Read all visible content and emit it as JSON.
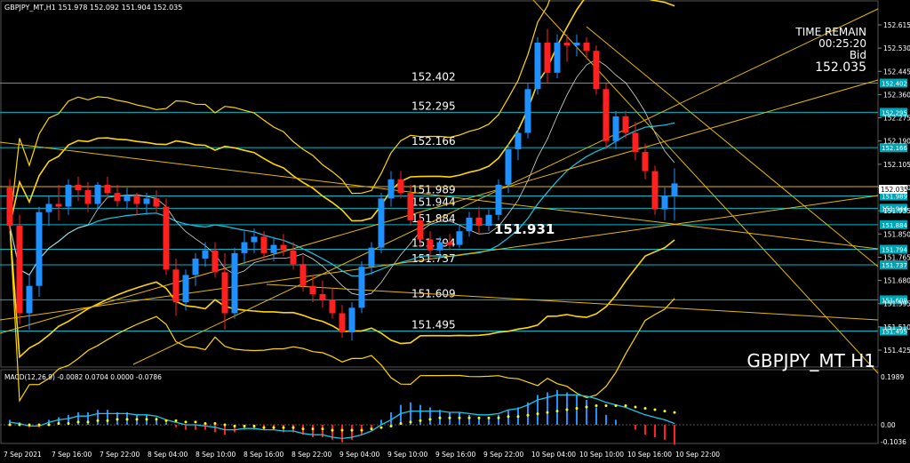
{
  "header": {
    "symbol_info": "GBPJPY_MT,H1  151.978 152.092 151.904 152.035",
    "watermark": "GBPJPY_MT H1"
  },
  "time_panel": {
    "title": "TIME REMAIN",
    "countdown": "00:25:20",
    "bid_label": "Bid",
    "bid_value": "152.035"
  },
  "macd": {
    "label": "MACD(12,26,9) -0.0082 0.0704 0.0000 -0.0786",
    "scale_top": "0.1989",
    "scale_zero": "0.00",
    "scale_bottom": "-0.1036"
  },
  "price_axis": [
    "152.615",
    "152.530",
    "152.445",
    "152.360",
    "152.275",
    "152.190",
    "152.105",
    "152.020",
    "151.935",
    "151.850",
    "151.765",
    "151.680",
    "151.595",
    "151.510",
    "151.425"
  ],
  "levels": [
    {
      "value": "152.402",
      "label": "152.402"
    },
    {
      "value": "152.295",
      "label": "152.295"
    },
    {
      "value": "152.166",
      "label": "152.166"
    },
    {
      "value": "151.989",
      "label": "151.989"
    },
    {
      "value": "151.944",
      "label": "151.944"
    },
    {
      "value": "151.884",
      "label": "151.884"
    },
    {
      "value": "151.794",
      "label": "151.794"
    },
    {
      "value": "151.737",
      "label": "151.737"
    },
    {
      "value": "151.609",
      "label": "151.609"
    },
    {
      "value": "151.495",
      "label": "151.495"
    }
  ],
  "markers": {
    "current_price_box": "152.035",
    "mid_label": "151.931"
  },
  "time_axis": [
    "7 Sep 2021",
    "7 Sep 16:00",
    "7 Sep 22:00",
    "8 Sep 04:00",
    "8 Sep 10:00",
    "8 Sep 16:00",
    "8 Sep 22:00",
    "9 Sep 04:00",
    "9 Sep 10:00",
    "9 Sep 16:00",
    "9 Sep 22:00",
    "10 Sep 04:00",
    "10 Sep 10:00",
    "10 Sep 16:00",
    "10 Sep 22:00"
  ],
  "colors": {
    "background": "#000000",
    "bull_candle": "#1e90ff",
    "bear_candle": "#ff2020",
    "level_line": "#00b8c8",
    "bands": "#ffd700",
    "trendlines": "#e6b800",
    "macd_signal": "#ffff00",
    "macd_line": "#19c8e6"
  },
  "chart_data": {
    "type": "candlestick",
    "symbol": "GBPJPY_MT",
    "timeframe": "H1",
    "ylim": [
      151.425,
      152.615
    ],
    "candles": [
      {
        "o": 152.02,
        "h": 152.05,
        "l": 151.86,
        "c": 151.88
      },
      {
        "o": 151.88,
        "h": 151.92,
        "l": 151.52,
        "c": 151.56
      },
      {
        "o": 151.56,
        "h": 151.7,
        "l": 151.5,
        "c": 151.66
      },
      {
        "o": 151.66,
        "h": 151.95,
        "l": 151.62,
        "c": 151.93
      },
      {
        "o": 151.93,
        "h": 151.99,
        "l": 151.88,
        "c": 151.96
      },
      {
        "o": 151.96,
        "h": 152.03,
        "l": 151.9,
        "c": 151.95
      },
      {
        "o": 151.95,
        "h": 152.05,
        "l": 151.92,
        "c": 152.03
      },
      {
        "o": 152.03,
        "h": 152.06,
        "l": 151.97,
        "c": 152.01
      },
      {
        "o": 152.01,
        "h": 152.04,
        "l": 151.93,
        "c": 151.96
      },
      {
        "o": 151.96,
        "h": 152.04,
        "l": 151.94,
        "c": 152.03
      },
      {
        "o": 152.03,
        "h": 152.06,
        "l": 151.98,
        "c": 152.0
      },
      {
        "o": 152.0,
        "h": 152.03,
        "l": 151.95,
        "c": 151.97
      },
      {
        "o": 151.97,
        "h": 152.02,
        "l": 151.94,
        "c": 151.99
      },
      {
        "o": 151.99,
        "h": 152.0,
        "l": 151.92,
        "c": 151.96
      },
      {
        "o": 151.96,
        "h": 152.0,
        "l": 151.92,
        "c": 151.98
      },
      {
        "o": 151.98,
        "h": 152.01,
        "l": 151.93,
        "c": 151.95
      },
      {
        "o": 151.95,
        "h": 151.98,
        "l": 151.7,
        "c": 151.72
      },
      {
        "o": 151.72,
        "h": 151.76,
        "l": 151.55,
        "c": 151.6
      },
      {
        "o": 151.6,
        "h": 151.72,
        "l": 151.57,
        "c": 151.7
      },
      {
        "o": 151.7,
        "h": 151.78,
        "l": 151.66,
        "c": 151.76
      },
      {
        "o": 151.76,
        "h": 151.82,
        "l": 151.73,
        "c": 151.79
      },
      {
        "o": 151.79,
        "h": 151.82,
        "l": 151.69,
        "c": 151.71
      },
      {
        "o": 151.71,
        "h": 151.78,
        "l": 151.5,
        "c": 151.56
      },
      {
        "o": 151.56,
        "h": 151.8,
        "l": 151.54,
        "c": 151.78
      },
      {
        "o": 151.78,
        "h": 151.86,
        "l": 151.74,
        "c": 151.82
      },
      {
        "o": 151.82,
        "h": 151.87,
        "l": 151.78,
        "c": 151.84
      },
      {
        "o": 151.84,
        "h": 151.86,
        "l": 151.76,
        "c": 151.78
      },
      {
        "o": 151.78,
        "h": 151.84,
        "l": 151.75,
        "c": 151.81
      },
      {
        "o": 151.81,
        "h": 151.85,
        "l": 151.77,
        "c": 151.79
      },
      {
        "o": 151.79,
        "h": 151.82,
        "l": 151.72,
        "c": 151.74
      },
      {
        "o": 151.74,
        "h": 151.77,
        "l": 151.64,
        "c": 151.66
      },
      {
        "o": 151.66,
        "h": 151.7,
        "l": 151.6,
        "c": 151.63
      },
      {
        "o": 151.63,
        "h": 151.68,
        "l": 151.58,
        "c": 151.61
      },
      {
        "o": 151.61,
        "h": 151.65,
        "l": 151.54,
        "c": 151.56
      },
      {
        "o": 151.56,
        "h": 151.59,
        "l": 151.47,
        "c": 151.49
      },
      {
        "o": 151.49,
        "h": 151.6,
        "l": 151.46,
        "c": 151.58
      },
      {
        "o": 151.58,
        "h": 151.75,
        "l": 151.56,
        "c": 151.73
      },
      {
        "o": 151.73,
        "h": 151.82,
        "l": 151.7,
        "c": 151.8
      },
      {
        "o": 151.8,
        "h": 152.0,
        "l": 151.78,
        "c": 151.98
      },
      {
        "o": 151.98,
        "h": 152.08,
        "l": 151.95,
        "c": 152.05
      },
      {
        "o": 152.05,
        "h": 152.08,
        "l": 151.98,
        "c": 152.0
      },
      {
        "o": 152.0,
        "h": 152.03,
        "l": 151.88,
        "c": 151.9
      },
      {
        "o": 151.9,
        "h": 151.93,
        "l": 151.8,
        "c": 151.83
      },
      {
        "o": 151.83,
        "h": 151.86,
        "l": 151.76,
        "c": 151.79
      },
      {
        "o": 151.79,
        "h": 151.84,
        "l": 151.76,
        "c": 151.82
      },
      {
        "o": 151.82,
        "h": 151.85,
        "l": 151.79,
        "c": 151.81
      },
      {
        "o": 151.81,
        "h": 151.88,
        "l": 151.8,
        "c": 151.86
      },
      {
        "o": 151.86,
        "h": 151.93,
        "l": 151.84,
        "c": 151.91
      },
      {
        "o": 151.91,
        "h": 151.95,
        "l": 151.85,
        "c": 151.88
      },
      {
        "o": 151.88,
        "h": 151.94,
        "l": 151.86,
        "c": 151.92
      },
      {
        "o": 151.92,
        "h": 152.05,
        "l": 151.9,
        "c": 152.03
      },
      {
        "o": 152.03,
        "h": 152.18,
        "l": 152.0,
        "c": 152.16
      },
      {
        "o": 152.16,
        "h": 152.24,
        "l": 152.12,
        "c": 152.22
      },
      {
        "o": 152.22,
        "h": 152.4,
        "l": 152.2,
        "c": 152.38
      },
      {
        "o": 152.38,
        "h": 152.57,
        "l": 152.36,
        "c": 152.55
      },
      {
        "o": 152.55,
        "h": 152.6,
        "l": 152.4,
        "c": 152.44
      },
      {
        "o": 152.44,
        "h": 152.58,
        "l": 152.42,
        "c": 152.55
      },
      {
        "o": 152.55,
        "h": 152.58,
        "l": 152.48,
        "c": 152.54
      },
      {
        "o": 152.54,
        "h": 152.58,
        "l": 152.5,
        "c": 152.55
      },
      {
        "o": 152.55,
        "h": 152.57,
        "l": 152.49,
        "c": 152.52
      },
      {
        "o": 152.52,
        "h": 152.54,
        "l": 152.36,
        "c": 152.38
      },
      {
        "o": 152.38,
        "h": 152.4,
        "l": 152.16,
        "c": 152.19
      },
      {
        "o": 152.19,
        "h": 152.3,
        "l": 152.16,
        "c": 152.28
      },
      {
        "o": 152.28,
        "h": 152.3,
        "l": 152.2,
        "c": 152.22
      },
      {
        "o": 152.22,
        "h": 152.26,
        "l": 152.12,
        "c": 152.15
      },
      {
        "o": 152.15,
        "h": 152.18,
        "l": 152.05,
        "c": 152.08
      },
      {
        "o": 152.08,
        "h": 152.1,
        "l": 151.92,
        "c": 151.94
      },
      {
        "o": 151.94,
        "h": 152.02,
        "l": 151.9,
        "c": 151.99
      },
      {
        "o": 151.99,
        "h": 152.09,
        "l": 151.9,
        "c": 152.035
      }
    ],
    "macd_histogram": [
      0.02,
      0.01,
      -0.01,
      -0.01,
      0.02,
      0.03,
      0.04,
      0.05,
      0.05,
      0.06,
      0.06,
      0.05,
      0.05,
      0.04,
      0.04,
      0.03,
      0.01,
      -0.01,
      -0.02,
      -0.02,
      -0.02,
      -0.03,
      -0.04,
      -0.03,
      -0.02,
      -0.02,
      -0.02,
      -0.02,
      -0.03,
      -0.03,
      -0.04,
      -0.05,
      -0.05,
      -0.06,
      -0.07,
      -0.06,
      -0.04,
      -0.02,
      0.02,
      0.05,
      0.08,
      0.09,
      0.08,
      0.07,
      0.06,
      0.05,
      0.05,
      0.04,
      0.03,
      0.03,
      0.04,
      0.06,
      0.07,
      0.09,
      0.12,
      0.13,
      0.14,
      0.13,
      0.12,
      0.1,
      0.07,
      0.04,
      0.02,
      0.0,
      -0.02,
      -0.04,
      -0.05,
      -0.06,
      -0.08
    ],
    "macd_signal": [
      0.0,
      0.0,
      0.0,
      0.0,
      0.0,
      0.01,
      0.01,
      0.02,
      0.02,
      0.03,
      0.03,
      0.04,
      0.04,
      0.04,
      0.04,
      0.04,
      0.03,
      0.03,
      0.02,
      0.02,
      0.01,
      0.01,
      0.0,
      -0.01,
      -0.01,
      -0.01,
      -0.02,
      -0.02,
      -0.02,
      -0.02,
      -0.03,
      -0.03,
      -0.03,
      -0.04,
      -0.04,
      -0.04,
      -0.04,
      -0.03,
      -0.02,
      -0.01,
      0.01,
      0.02,
      0.03,
      0.04,
      0.05,
      0.05,
      0.05,
      0.05,
      0.05,
      0.05,
      0.05,
      0.06,
      0.06,
      0.07,
      0.08,
      0.09,
      0.1,
      0.11,
      0.12,
      0.13,
      0.14,
      0.14,
      0.14,
      0.14,
      0.13,
      0.12,
      0.11,
      0.1,
      0.09
    ]
  }
}
